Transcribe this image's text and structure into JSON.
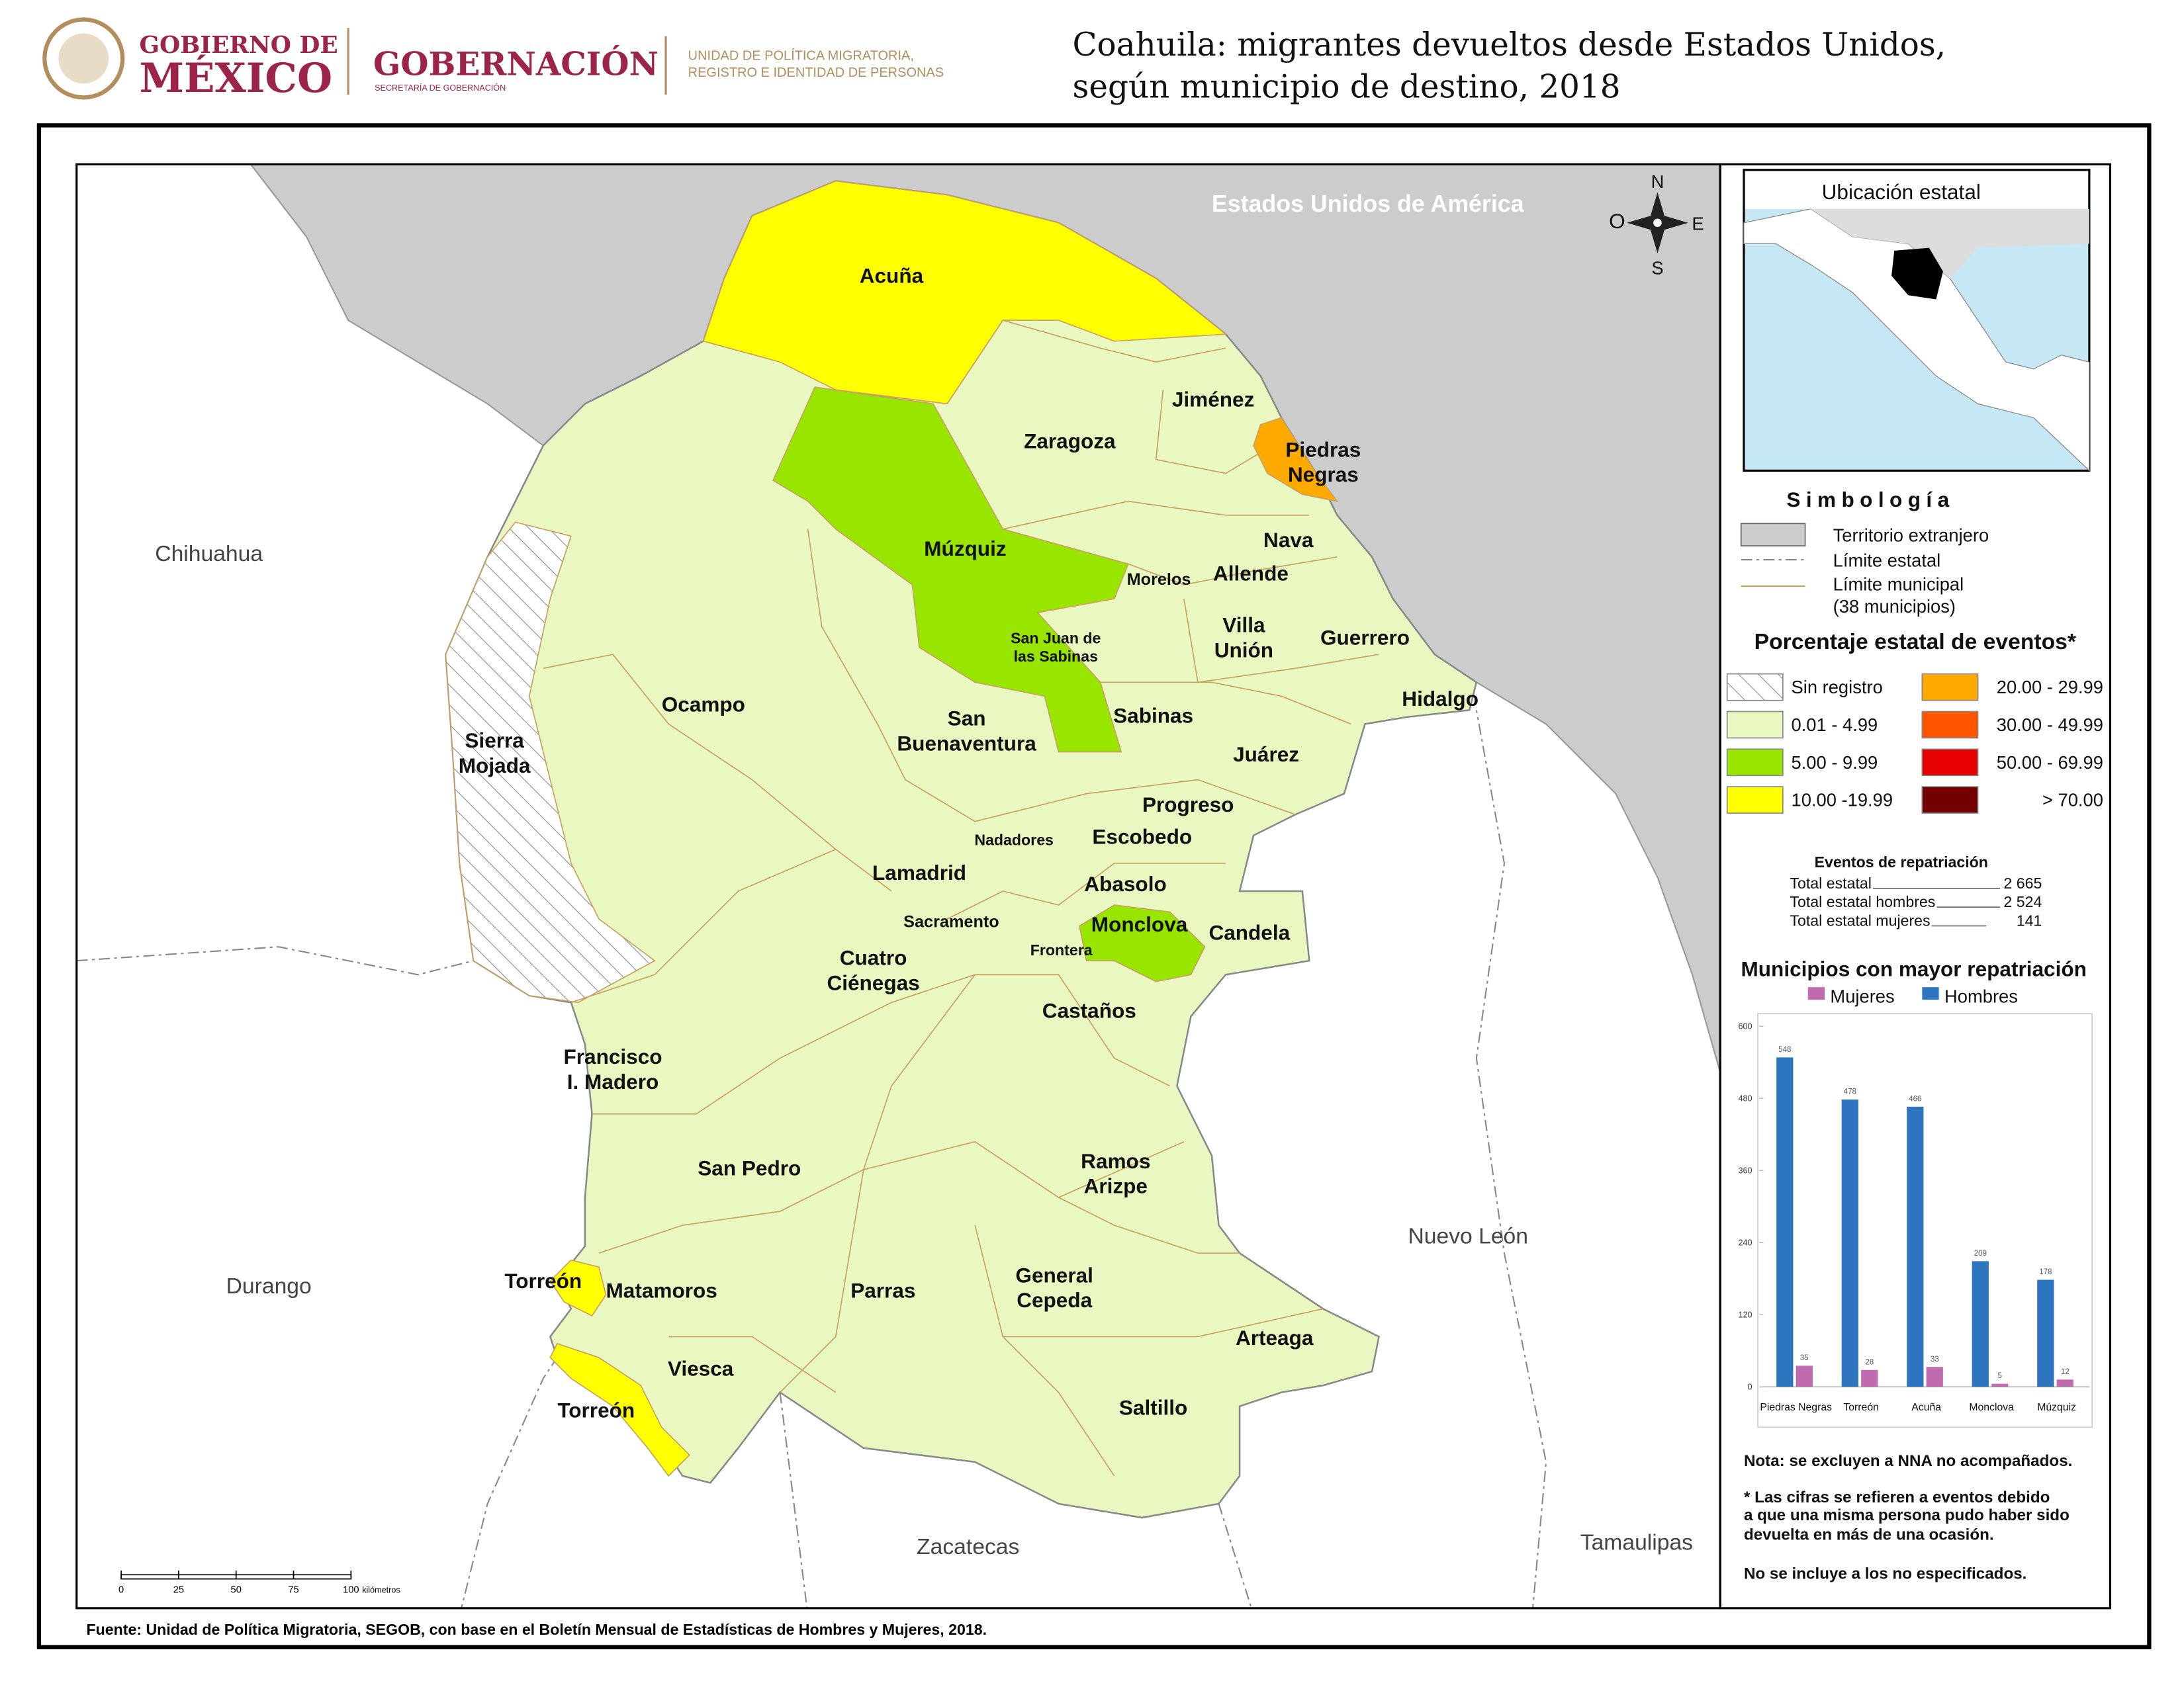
{
  "header": {
    "logo_gobierno": "GOBIERNO DE",
    "logo_mexico": "MÉXICO",
    "logo_gobernacion": "GOBERNACIÓN",
    "logo_secretaria": "SECRETARÍA DE GOBERNACIÓN",
    "logo_unidad": [
      "UNIDAD DE POLÍTICA MIGRATORIA,",
      "REGISTRO E IDENTIDAD DE PERSONAS"
    ],
    "title": [
      "Coahuila: migrantes devueltos desde Estados Unidos,",
      "según municipio de destino, 2018"
    ]
  },
  "map": {
    "regions": [
      "Estados Unidos de América",
      "Chihuahua",
      "Durango",
      "Zacatecas",
      "Nuevo León",
      "Tamaulipas"
    ],
    "municipalities": [
      [
        "Acuña"
      ],
      [
        "Zaragoza"
      ],
      [
        "Jiménez"
      ],
      [
        "Piedras",
        "Negras"
      ],
      [
        "Nava"
      ],
      [
        "Múzquiz"
      ],
      [
        "Morelos"
      ],
      [
        "Allende"
      ],
      [
        "San Juan de",
        "las Sabinas"
      ],
      [
        "Villa",
        "Unión"
      ],
      [
        "Guerrero"
      ],
      [
        "Hidalgo"
      ],
      [
        "Ocampo"
      ],
      [
        "Sierra",
        "Mojada"
      ],
      [
        "San",
        "Buenaventura"
      ],
      [
        "Sabinas"
      ],
      [
        "Juárez"
      ],
      [
        "Progreso"
      ],
      [
        "Escobedo"
      ],
      [
        "Nadadores"
      ],
      [
        "Lamadrid"
      ],
      [
        "Abasolo"
      ],
      [
        "Sacramento"
      ],
      [
        "Monclova"
      ],
      [
        "Candela"
      ],
      [
        "Frontera"
      ],
      [
        "Cuatro",
        "Ciénegas"
      ],
      [
        "Castaños"
      ],
      [
        "Francisco",
        "I. Madero"
      ],
      [
        "San Pedro"
      ],
      [
        "Ramos",
        "Arizpe"
      ],
      [
        "Torreón"
      ],
      [
        "Matamoros"
      ],
      [
        "Parras"
      ],
      [
        "General",
        "Cepeda"
      ],
      [
        "Arteaga"
      ],
      [
        "Viesca"
      ],
      [
        "Torreón"
      ],
      [
        "Saltillo"
      ]
    ],
    "compass": [
      "N",
      "O",
      "E",
      "S"
    ],
    "scale_ticks": [
      0,
      25,
      50,
      75,
      100
    ],
    "scale_unit": "kilómetros"
  },
  "inset": {
    "title": "Ubicación estatal"
  },
  "legend": {
    "title": "Simbología",
    "items": [
      "Territorio extranjero",
      "Límite estatal",
      "Límite municipal",
      "(38 municipios)"
    ],
    "percent_title": "Porcentaje estatal de eventos*",
    "classes": [
      {
        "label": "Sin registro",
        "color": "#ffffff",
        "pattern": "hatch"
      },
      {
        "label": "0.01  - 4.99",
        "color": "#e9f8c1"
      },
      {
        "label": "5.00  - 9.99",
        "color": "#98e600"
      },
      {
        "label": "10.00 -19.99",
        "color": "#ffff00"
      },
      {
        "label": "20.00 - 29.99",
        "color": "#ffaa00"
      },
      {
        "label": "30.00 - 49.99",
        "color": "#ff5500"
      },
      {
        "label": "50.00 - 69.99",
        "color": "#e60000"
      },
      {
        "label": "> 70.00",
        "color": "#730000"
      }
    ]
  },
  "stats": {
    "title": "Eventos de repatriación",
    "rows": [
      [
        "Total estatal",
        "2 665"
      ],
      [
        "Total estatal hombres",
        "2 524"
      ],
      [
        "Total estatal mujeres",
        "141"
      ]
    ]
  },
  "chart_data": {
    "type": "bar",
    "title": "Municipios con mayor repatriación",
    "categories": [
      "Piedras Negras",
      "Torreón",
      "Acuña",
      "Monclova",
      "Múzquiz"
    ],
    "series": [
      {
        "name": "Mujeres",
        "color": "#c06ab0",
        "values": [
          35,
          28,
          33,
          5,
          12
        ]
      },
      {
        "name": "Hombres",
        "color": "#2e75c0",
        "values": [
          548,
          478,
          466,
          209,
          178
        ]
      }
    ],
    "ylim": [
      0,
      600
    ],
    "yticks": [
      0,
      120,
      240,
      360,
      480,
      600
    ],
    "grid": false
  },
  "notes": [
    "Nota: se excluyen a NNA no acompañados.",
    "* Las cifras se refieren a eventos debido",
    "a que una misma persona pudo haber sido",
    "devuelta en más de una ocasión.",
    "No se incluye a los no especificados."
  ],
  "source": "Fuente: Unidad de Política Migratoria, SEGOB, con base en el Boletín Mensual de Estadísticas de Hombres y Mujeres, 2018."
}
